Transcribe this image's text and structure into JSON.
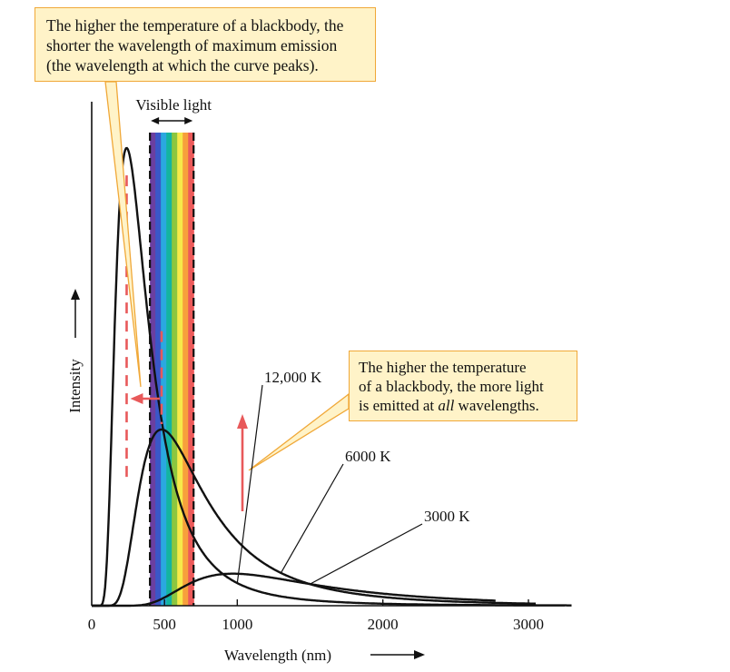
{
  "chart_data": {
    "type": "line",
    "title": "",
    "xlabel": "Wavelength (nm)",
    "ylabel": "Intensity",
    "xlim": [
      0,
      3300
    ],
    "ylim": [
      0,
      1.0
    ],
    "x_ticks": [
      0,
      500,
      1000,
      2000,
      3000
    ],
    "x_tick_labels": [
      "0",
      "500",
      "1000",
      "2000",
      "3000"
    ],
    "grid": false,
    "visible_band": {
      "label": "Visible light",
      "range_nm": [
        400,
        700
      ],
      "colors": [
        "#6b3fa0",
        "#3a57c8",
        "#2aa8e0",
        "#14b4a0",
        "#8cc63f",
        "#f6e94a",
        "#f7a03c",
        "#ec5a5a"
      ]
    },
    "series": [
      {
        "name": "12,000 K",
        "temperature_K": 12000,
        "peak_x": 240,
        "peak_y": 1.0
      },
      {
        "name": "6000 K",
        "temperature_K": 6000,
        "peak_x": 480,
        "peak_y": 0.385
      },
      {
        "name": "3000 K",
        "temperature_K": 3000,
        "peak_x": 970,
        "peak_y": 0.07
      }
    ],
    "curve_labels": [
      {
        "series": "12,000 K",
        "text": "12,000 K"
      },
      {
        "series": "6000 K",
        "text": "6000 K"
      },
      {
        "series": "3000 K",
        "text": "3000 K"
      }
    ],
    "annotations": [
      {
        "id": "peak-shift",
        "lines": [
          "The higher the temperature of a blackbody, the",
          "shorter the wavelength of maximum emission",
          "(the wavelength at which the curve peaks)."
        ]
      },
      {
        "id": "more-light",
        "lines_before": [
          "The higher the temperature",
          "of a blackbody, the more light",
          "is emitted at "
        ],
        "emphasis": "all",
        "after": " wavelengths."
      }
    ],
    "colors": {
      "curve": "#111111",
      "arrow": "#e8595a",
      "callout_fill": "#fff3c8",
      "callout_border": "#f0a838"
    }
  }
}
